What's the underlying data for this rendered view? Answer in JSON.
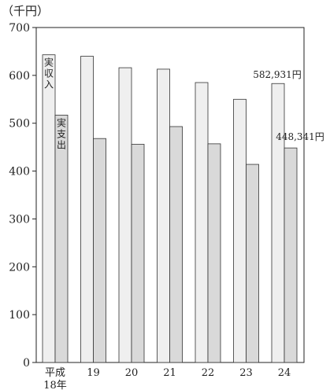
{
  "chart_data": {
    "type": "bar",
    "unit_label": "（千円）",
    "ylim": [
      0,
      700
    ],
    "yticks": [
      0,
      100,
      200,
      300,
      400,
      500,
      600,
      700
    ],
    "categories": [
      {
        "line1": "平成",
        "line2": "18年"
      },
      {
        "line1": "19",
        "line2": ""
      },
      {
        "line1": "20",
        "line2": ""
      },
      {
        "line1": "21",
        "line2": ""
      },
      {
        "line1": "22",
        "line2": ""
      },
      {
        "line1": "23",
        "line2": ""
      },
      {
        "line1": "24",
        "line2": ""
      }
    ],
    "series": [
      {
        "name": "実収入",
        "color": "#efefef",
        "values": [
          643,
          640,
          616,
          613,
          585,
          550,
          582.931
        ]
      },
      {
        "name": "実支出",
        "color": "#d9d9d9",
        "values": [
          517,
          468,
          456,
          493,
          457,
          414,
          448.341
        ]
      }
    ],
    "annotations": [
      "582,931円",
      "448,341円"
    ],
    "grid": false,
    "legend": "none (series names written inside the first pair of bars)"
  }
}
